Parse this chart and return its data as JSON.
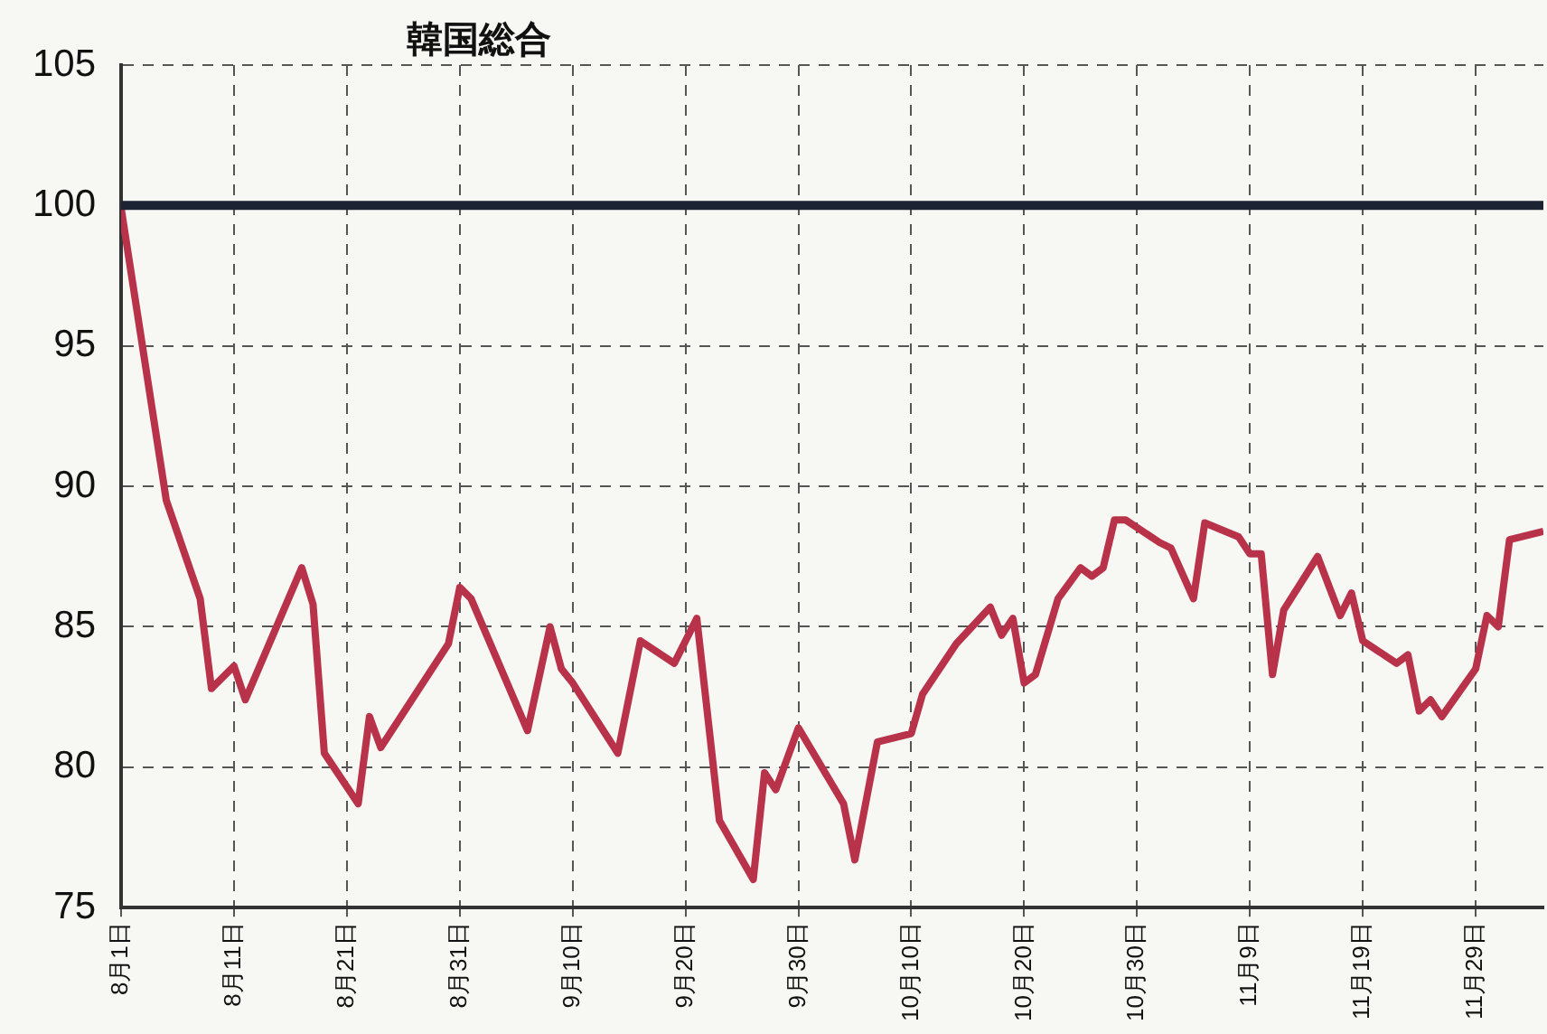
{
  "chart_data": {
    "type": "line",
    "title": "韓国総合",
    "x": [
      "--08-01",
      "--08-05",
      "--08-08",
      "--08-09",
      "--08-11",
      "--08-12",
      "--08-17",
      "--08-18",
      "--08-19",
      "--08-22",
      "--08-23",
      "--08-24",
      "--08-30",
      "--08-31",
      "--09-01",
      "--09-06",
      "--09-08",
      "--09-09",
      "--09-10",
      "--09-14",
      "--09-16",
      "--09-19",
      "--09-21",
      "--09-23",
      "--09-26",
      "--09-27",
      "--09-28",
      "--09-30",
      "--10-04",
      "--10-05",
      "--10-07",
      "--10-10",
      "--10-11",
      "--10-14",
      "--10-17",
      "--10-18",
      "--10-19",
      "--10-20",
      "--10-21",
      "--10-23",
      "--10-25",
      "--10-26",
      "--10-27",
      "--10-28",
      "--10-29",
      "--11-01",
      "--11-02",
      "--11-04",
      "--11-05",
      "--11-08",
      "--11-09",
      "--11-10",
      "--11-11",
      "--11-12",
      "--11-15",
      "--11-17",
      "--11-18",
      "--11-19",
      "--11-22",
      "--11-23",
      "--11-24",
      "--11-25",
      "--11-26",
      "--11-29",
      "--11-30",
      "--12-01",
      "--12-02",
      "--12-05"
    ],
    "series": [
      {
        "color": "#b8334a",
        "values": [
          99.9,
          89.5,
          86.0,
          82.8,
          83.6,
          82.4,
          87.1,
          85.8,
          80.5,
          78.7,
          81.8,
          80.7,
          84.4,
          86.4,
          86.0,
          81.3,
          85.0,
          83.5,
          83.0,
          80.5,
          84.5,
          83.7,
          85.3,
          78.1,
          76.0,
          79.8,
          79.2,
          81.4,
          78.7,
          76.7,
          80.9,
          81.2,
          82.6,
          84.4,
          85.7,
          84.7,
          85.3,
          83.0,
          83.3,
          86.0,
          87.1,
          86.8,
          87.1,
          88.8,
          88.8,
          88.0,
          87.8,
          86.0,
          88.7,
          88.2,
          87.6,
          87.6,
          83.3,
          85.6,
          87.5,
          85.4,
          86.2,
          84.5,
          83.7,
          84.0,
          82.0,
          82.4,
          81.8,
          83.5,
          85.4,
          85.0,
          88.1,
          88.4
        ]
      }
    ],
    "xlim": [
      "--08-01",
      "--12-05"
    ],
    "xticks": [
      {
        "value": "--08-01",
        "label": "8月1日"
      },
      {
        "value": "--08-11",
        "label": "8月11日"
      },
      {
        "value": "--08-21",
        "label": "8月21日"
      },
      {
        "value": "--08-31",
        "label": "8月31日"
      },
      {
        "value": "--09-10",
        "label": "9月10日"
      },
      {
        "value": "--09-20",
        "label": "9月20日"
      },
      {
        "value": "--09-30",
        "label": "9月30日"
      },
      {
        "value": "--10-10",
        "label": "10月10日"
      },
      {
        "value": "--10-20",
        "label": "10月20日"
      },
      {
        "value": "--10-30",
        "label": "10月30日"
      },
      {
        "value": "--11-09",
        "label": "11月9日"
      },
      {
        "value": "--11-19",
        "label": "11月19日"
      },
      {
        "value": "--11-29",
        "label": "11月29日"
      }
    ],
    "ylim": [
      75,
      105
    ],
    "yticks": [
      75,
      80,
      85,
      90,
      95,
      100,
      105
    ],
    "ref_lines": [
      {
        "axis": "y",
        "value": 100,
        "color": "#1c2434"
      }
    ],
    "grid": true,
    "legend": false,
    "marker": "none",
    "line_style": "solid"
  }
}
